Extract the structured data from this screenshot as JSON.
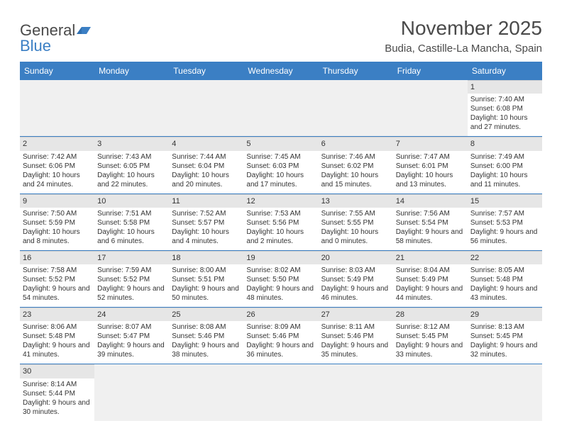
{
  "logo": {
    "part1": "General",
    "part2": "Blue"
  },
  "header": {
    "title": "November 2025",
    "location": "Budia, Castille-La Mancha, Spain"
  },
  "colors": {
    "header_bg": "#3b7fc4",
    "header_text": "#ffffff",
    "daynum_bg": "#e6e6e6",
    "empty_bg": "#f0f0f0",
    "row_border": "#3b7fc4",
    "text": "#333333",
    "title_text": "#4a4a4a"
  },
  "dayNames": [
    "Sunday",
    "Monday",
    "Tuesday",
    "Wednesday",
    "Thursday",
    "Friday",
    "Saturday"
  ],
  "weeks": [
    [
      null,
      null,
      null,
      null,
      null,
      null,
      {
        "n": "1",
        "sunrise": "Sunrise: 7:40 AM",
        "sunset": "Sunset: 6:08 PM",
        "daylight": "Daylight: 10 hours and 27 minutes."
      }
    ],
    [
      {
        "n": "2",
        "sunrise": "Sunrise: 7:42 AM",
        "sunset": "Sunset: 6:06 PM",
        "daylight": "Daylight: 10 hours and 24 minutes."
      },
      {
        "n": "3",
        "sunrise": "Sunrise: 7:43 AM",
        "sunset": "Sunset: 6:05 PM",
        "daylight": "Daylight: 10 hours and 22 minutes."
      },
      {
        "n": "4",
        "sunrise": "Sunrise: 7:44 AM",
        "sunset": "Sunset: 6:04 PM",
        "daylight": "Daylight: 10 hours and 20 minutes."
      },
      {
        "n": "5",
        "sunrise": "Sunrise: 7:45 AM",
        "sunset": "Sunset: 6:03 PM",
        "daylight": "Daylight: 10 hours and 17 minutes."
      },
      {
        "n": "6",
        "sunrise": "Sunrise: 7:46 AM",
        "sunset": "Sunset: 6:02 PM",
        "daylight": "Daylight: 10 hours and 15 minutes."
      },
      {
        "n": "7",
        "sunrise": "Sunrise: 7:47 AM",
        "sunset": "Sunset: 6:01 PM",
        "daylight": "Daylight: 10 hours and 13 minutes."
      },
      {
        "n": "8",
        "sunrise": "Sunrise: 7:49 AM",
        "sunset": "Sunset: 6:00 PM",
        "daylight": "Daylight: 10 hours and 11 minutes."
      }
    ],
    [
      {
        "n": "9",
        "sunrise": "Sunrise: 7:50 AM",
        "sunset": "Sunset: 5:59 PM",
        "daylight": "Daylight: 10 hours and 8 minutes."
      },
      {
        "n": "10",
        "sunrise": "Sunrise: 7:51 AM",
        "sunset": "Sunset: 5:58 PM",
        "daylight": "Daylight: 10 hours and 6 minutes."
      },
      {
        "n": "11",
        "sunrise": "Sunrise: 7:52 AM",
        "sunset": "Sunset: 5:57 PM",
        "daylight": "Daylight: 10 hours and 4 minutes."
      },
      {
        "n": "12",
        "sunrise": "Sunrise: 7:53 AM",
        "sunset": "Sunset: 5:56 PM",
        "daylight": "Daylight: 10 hours and 2 minutes."
      },
      {
        "n": "13",
        "sunrise": "Sunrise: 7:55 AM",
        "sunset": "Sunset: 5:55 PM",
        "daylight": "Daylight: 10 hours and 0 minutes."
      },
      {
        "n": "14",
        "sunrise": "Sunrise: 7:56 AM",
        "sunset": "Sunset: 5:54 PM",
        "daylight": "Daylight: 9 hours and 58 minutes."
      },
      {
        "n": "15",
        "sunrise": "Sunrise: 7:57 AM",
        "sunset": "Sunset: 5:53 PM",
        "daylight": "Daylight: 9 hours and 56 minutes."
      }
    ],
    [
      {
        "n": "16",
        "sunrise": "Sunrise: 7:58 AM",
        "sunset": "Sunset: 5:52 PM",
        "daylight": "Daylight: 9 hours and 54 minutes."
      },
      {
        "n": "17",
        "sunrise": "Sunrise: 7:59 AM",
        "sunset": "Sunset: 5:52 PM",
        "daylight": "Daylight: 9 hours and 52 minutes."
      },
      {
        "n": "18",
        "sunrise": "Sunrise: 8:00 AM",
        "sunset": "Sunset: 5:51 PM",
        "daylight": "Daylight: 9 hours and 50 minutes."
      },
      {
        "n": "19",
        "sunrise": "Sunrise: 8:02 AM",
        "sunset": "Sunset: 5:50 PM",
        "daylight": "Daylight: 9 hours and 48 minutes."
      },
      {
        "n": "20",
        "sunrise": "Sunrise: 8:03 AM",
        "sunset": "Sunset: 5:49 PM",
        "daylight": "Daylight: 9 hours and 46 minutes."
      },
      {
        "n": "21",
        "sunrise": "Sunrise: 8:04 AM",
        "sunset": "Sunset: 5:49 PM",
        "daylight": "Daylight: 9 hours and 44 minutes."
      },
      {
        "n": "22",
        "sunrise": "Sunrise: 8:05 AM",
        "sunset": "Sunset: 5:48 PM",
        "daylight": "Daylight: 9 hours and 43 minutes."
      }
    ],
    [
      {
        "n": "23",
        "sunrise": "Sunrise: 8:06 AM",
        "sunset": "Sunset: 5:48 PM",
        "daylight": "Daylight: 9 hours and 41 minutes."
      },
      {
        "n": "24",
        "sunrise": "Sunrise: 8:07 AM",
        "sunset": "Sunset: 5:47 PM",
        "daylight": "Daylight: 9 hours and 39 minutes."
      },
      {
        "n": "25",
        "sunrise": "Sunrise: 8:08 AM",
        "sunset": "Sunset: 5:46 PM",
        "daylight": "Daylight: 9 hours and 38 minutes."
      },
      {
        "n": "26",
        "sunrise": "Sunrise: 8:09 AM",
        "sunset": "Sunset: 5:46 PM",
        "daylight": "Daylight: 9 hours and 36 minutes."
      },
      {
        "n": "27",
        "sunrise": "Sunrise: 8:11 AM",
        "sunset": "Sunset: 5:46 PM",
        "daylight": "Daylight: 9 hours and 35 minutes."
      },
      {
        "n": "28",
        "sunrise": "Sunrise: 8:12 AM",
        "sunset": "Sunset: 5:45 PM",
        "daylight": "Daylight: 9 hours and 33 minutes."
      },
      {
        "n": "29",
        "sunrise": "Sunrise: 8:13 AM",
        "sunset": "Sunset: 5:45 PM",
        "daylight": "Daylight: 9 hours and 32 minutes."
      }
    ],
    [
      {
        "n": "30",
        "sunrise": "Sunrise: 8:14 AM",
        "sunset": "Sunset: 5:44 PM",
        "daylight": "Daylight: 9 hours and 30 minutes."
      },
      null,
      null,
      null,
      null,
      null,
      null
    ]
  ]
}
